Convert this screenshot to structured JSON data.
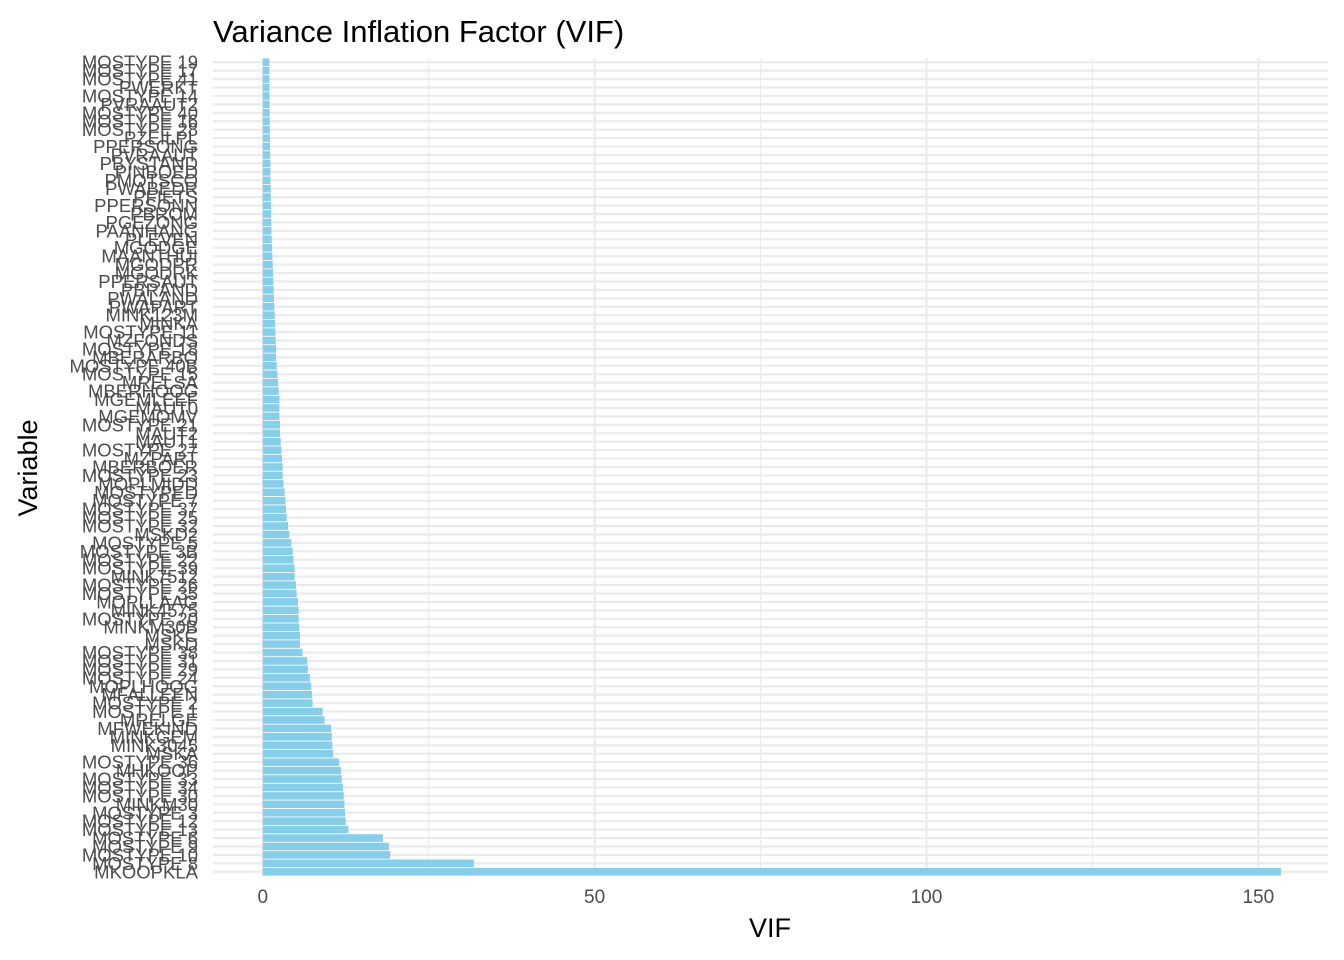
{
  "chart_data": {
    "type": "bar",
    "orientation": "horizontal",
    "title": "Variance Inflation Factor (VIF)",
    "xlabel": "VIF",
    "ylabel": "Variable",
    "xlim": [
      -7.5,
      160.5
    ],
    "x_ticks": [
      0,
      50,
      100,
      150
    ],
    "x_tick_labels": [
      "0",
      "50",
      "100",
      "150"
    ],
    "bar_color": "#87ceeb",
    "grid": true,
    "categories": [
      "MKOOPKLA",
      "MOSTYPE 8",
      "MOSTYPE 10",
      "MOSTYPE 9",
      "MOSTYPE 6",
      "MOSTYPE 13",
      "MOSTYPE 12",
      "MOSTYPE 3",
      "MINKM30",
      "MOSTYPE 30",
      "MOSTYPE 34",
      "MOSTYPE 33",
      "MHKOOP",
      "MOSTYPE 36",
      "MSKA",
      "MINK3045",
      "MINKGEM",
      "MFWEKIND",
      "MRELGE",
      "MOSTYPE 1",
      "MOSTYPE 2",
      "MFALLEEN",
      "MOPLHOOG",
      "MOSTYPE 24",
      "MOSTYPE 29",
      "MOSTYPE 31",
      "MOSTYPE 38",
      "MSKD",
      "MSKC",
      "MINKM30B",
      "MOSTYPE 20",
      "MINK4575",
      "MOPLLAAG",
      "MOSTYPE 35",
      "MOSTYPE 26",
      "MINK7512",
      "MOSTYPE 39",
      "MOSTYPE 22",
      "MOSTYPE 3B",
      "MOSTYPE 5",
      "MSKD2",
      "MOSTYPE 32",
      "MOSTYPE 25",
      "MOSTYPE 37",
      "MOSTYPE 7",
      "MOSTYPED",
      "MOPLMIDD",
      "MOSTYPE 23",
      "MBERBOER",
      "MZPART",
      "MOSTYPE 27",
      "MAUT1",
      "MAUT2",
      "MOSTYPE 21",
      "MGEMOMV",
      "MAUT0",
      "MGEMLEEF",
      "MBERHOOG",
      "MRELSA",
      "MOSTYPE 15",
      "MOSTYPE 40B",
      "MBERARBO",
      "MOSTYPE 18",
      "MZFONDS",
      "MOSTYPE 11",
      "MINKA",
      "MINK123M",
      "PWAPART",
      "PWALAND",
      "PBRAND",
      "PPERSAUT",
      "MGODRK",
      "MGODPR",
      "MAANTHUI",
      "MGODGE",
      "PLEVEN",
      "PAANHANG",
      "PGEZONG",
      "PBROM",
      "PPERSONN",
      "PFIETS",
      "PWABEDR",
      "PMOTSCO",
      "PINBOED",
      "PBYSTAND",
      "PVRAAUT",
      "PPERSONG",
      "PZEILPL",
      "MOSTYPE 28",
      "MOSTYPE 16",
      "MOSTYPE 40",
      "PVRAAUT2",
      "MOSTYPE 14",
      "PWERKT",
      "MOSTYPE 41",
      "MOSTYPE 17",
      "MOSTYPE 19"
    ],
    "labels_drawn": [
      "MKOOPKLA",
      "MOSTYPE 8",
      "MOSTYPE 10",
      "MOSTYPE 9",
      "MOSTYPE 6",
      "MOSTYPE 13",
      "MOSTYPE 12",
      "MOSTYPE 3",
      "MINKM30",
      "MOSTYPE 30",
      "MOSTYPE 34",
      "MOSTYPE 33",
      "MHKOOP",
      "MOSTYPE 36",
      "MSKA",
      "MINK3045",
      "MINKGEM",
      "MFWEKIND",
      "MRELGE",
      "MOSTYPE 1",
      "MOSTYPE 2",
      "MFALLEEN",
      "MOPLHOOG",
      "MOSTYPE 24",
      "MOSTYPE 29",
      "MOSTYPE 31",
      "MOSTYPE 38",
      "MSKD",
      "MSKC",
      "MINKM30B",
      "MOSTYPE 20",
      "MINK4575",
      "MOPLLAAG",
      "MOSTYPE 35",
      "MOSTYPE 26",
      "MINK7512",
      "MOSTYPE 39",
      "MOSTYPE 22",
      "MOSTYPE 3B",
      "MOSTYPE 5",
      "MSKD2",
      "MOSTYPE 32",
      "MOSTYPE 25",
      "MOSTYPE 37",
      "MOSTYPE 7",
      "MOSTYPED",
      "MOPLMIDD",
      "MOSTYPE 23",
      "MBERBOER",
      "MZPART",
      "MOSTYPE 27",
      "MAUT1",
      "MAUT2",
      "MOSTYPE 21",
      "MGEMOMV",
      "MAUT0",
      "MGEMLEEF",
      "MBERHOOG",
      "MRELSA",
      "MOSTYPE 15",
      "MOSTYPE 40B",
      "MBERARBO",
      "MOSTYPE 18",
      "MZFONDS",
      "MOSTYPE 11",
      "MINKA",
      "MINK123M",
      "PWAPART",
      "PWALAND",
      "PBRAND",
      "PPERSAUT",
      "MGODRK",
      "MGODPR",
      "MAANTHUI",
      "MGODGE",
      "PLEVEN",
      "PAANHANG",
      "PGEZONG",
      "PBROM",
      "PPERSONN",
      "PFIETS",
      "PWABEDR",
      "PMOTSCO",
      "PINBOED",
      "PBYSTAND",
      "PVRAAUT",
      "PPERSONG",
      "PZEILPL",
      "MOSTYPE 28",
      "MOSTYPE 16",
      "MOSTYPE 40",
      "PVRAAUT2",
      "MOSTYPE 14",
      "PWERKT",
      "MOSTYPE 41",
      "MOSTYPE 17",
      "MOSTYPE 19"
    ],
    "values": [
      153.4,
      31.8,
      19.2,
      19.0,
      18.1,
      12.9,
      12.5,
      12.4,
      12.3,
      12.2,
      12.1,
      11.9,
      11.8,
      11.5,
      10.6,
      10.5,
      10.4,
      10.3,
      9.3,
      9.0,
      7.5,
      7.4,
      7.3,
      7.1,
      6.8,
      6.7,
      6.0,
      5.6,
      5.6,
      5.5,
      5.4,
      5.4,
      5.3,
      5.1,
      5.0,
      4.8,
      4.8,
      4.6,
      4.5,
      4.3,
      4.0,
      3.8,
      3.6,
      3.5,
      3.4,
      3.3,
      3.1,
      3.0,
      3.0,
      2.9,
      2.8,
      2.7,
      2.6,
      2.6,
      2.5,
      2.5,
      2.5,
      2.4,
      2.3,
      2.2,
      2.1,
      2.0,
      2.0,
      1.95,
      1.9,
      1.85,
      1.8,
      1.75,
      1.7,
      1.65,
      1.6,
      1.55,
      1.5,
      1.45,
      1.4,
      1.35,
      1.3,
      1.28,
      1.26,
      1.24,
      1.22,
      1.2,
      1.18,
      1.16,
      1.14,
      1.12,
      1.1,
      1.08,
      1.06,
      1.05,
      1.04,
      1.03,
      1.02,
      1.01,
      1.0,
      1.0,
      1.0
    ]
  }
}
